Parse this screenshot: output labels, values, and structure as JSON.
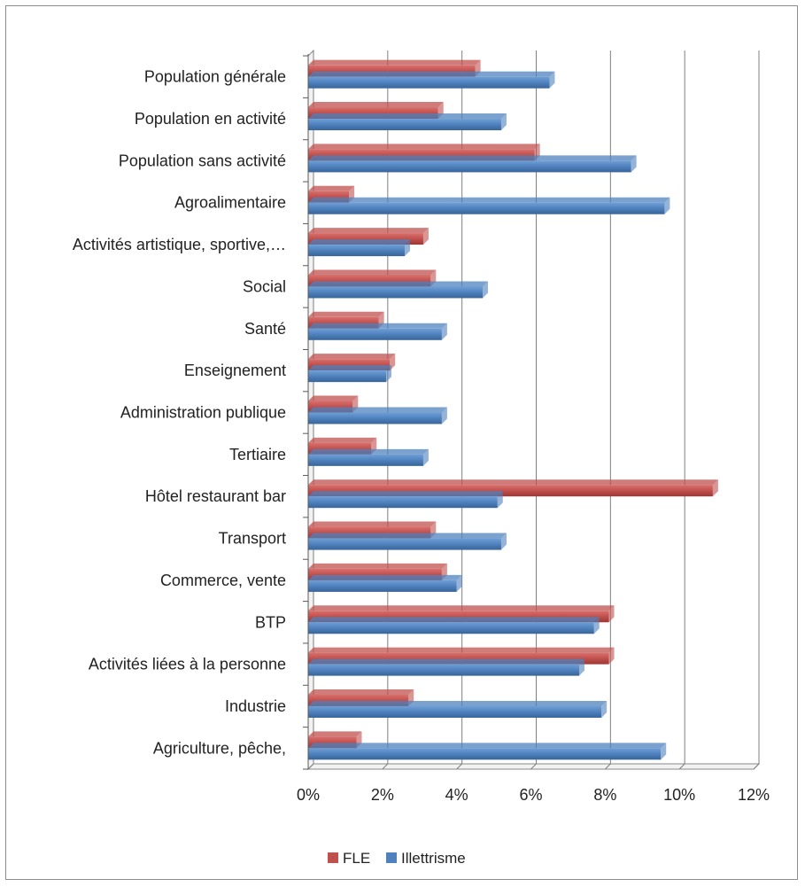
{
  "chart_data": {
    "type": "bar",
    "orientation": "horizontal",
    "style": "3d-clustered",
    "categories": [
      "Population générale",
      "Population en activité",
      "Population sans activité",
      "Agroalimentaire",
      "Activités artistique, sportive,…",
      "Social",
      "Santé",
      "Enseignement",
      "Administration publique",
      "Tertiaire",
      "Hôtel restaurant bar",
      "Transport",
      "Commerce, vente",
      "BTP",
      "Activités liées à la personne",
      "Industrie",
      "Agriculture, pêche,"
    ],
    "series": [
      {
        "name": "FLE",
        "color": "#c0504d",
        "values": [
          4.5,
          3.5,
          6.1,
          1.1,
          3.1,
          3.3,
          1.9,
          2.2,
          1.2,
          1.7,
          10.9,
          3.3,
          3.6,
          8.1,
          8.1,
          2.7,
          1.3
        ]
      },
      {
        "name": "Illettrisme",
        "color": "#4f81bd",
        "values": [
          6.5,
          5.2,
          8.7,
          9.6,
          2.6,
          4.7,
          3.6,
          2.1,
          3.6,
          3.1,
          5.1,
          5.2,
          4.0,
          7.7,
          7.3,
          7.9,
          9.5
        ]
      }
    ],
    "xlim": [
      0,
      12
    ],
    "x_ticks": [
      "0%",
      "2%",
      "4%",
      "6%",
      "8%",
      "10%",
      "12%"
    ],
    "grid": "vertical",
    "legend": "bottom",
    "title": "",
    "xlabel": "",
    "ylabel": ""
  }
}
